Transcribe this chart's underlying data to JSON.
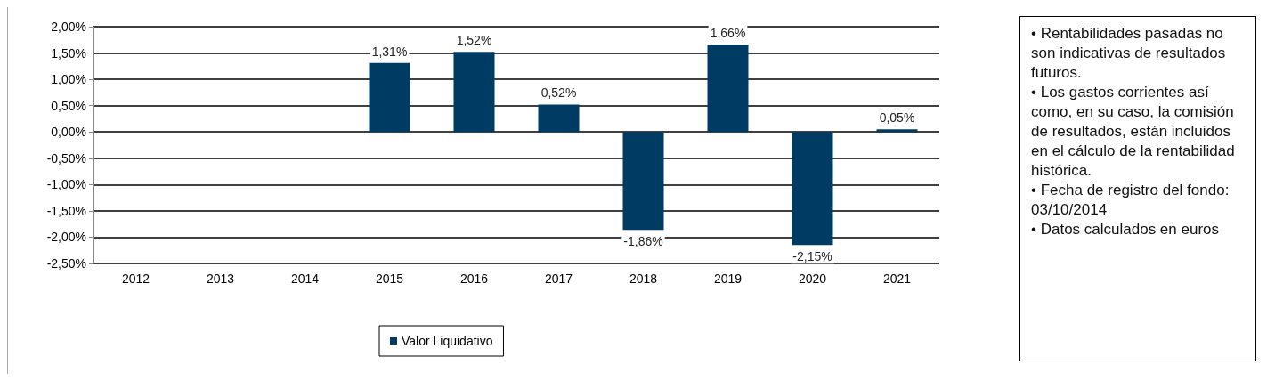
{
  "chart_data": {
    "type": "bar",
    "categories": [
      "2012",
      "2013",
      "2014",
      "2015",
      "2016",
      "2017",
      "2018",
      "2019",
      "2020",
      "2021"
    ],
    "series": [
      {
        "name": "Valor Liquidativo",
        "color": "#003b63",
        "values": [
          null,
          null,
          null,
          1.31,
          1.52,
          0.52,
          -1.86,
          1.66,
          -2.15,
          0.05
        ],
        "value_labels": [
          null,
          null,
          null,
          "1,31%",
          "1,52%",
          "0,52%",
          "-1,86%",
          "1,66%",
          "-2,15%",
          "0,05%"
        ]
      }
    ],
    "ylim": [
      -2.5,
      2
    ],
    "yticks": [
      {
        "value": -2.5,
        "label": "-2,50%"
      },
      {
        "value": -2,
        "label": "-2,00%"
      },
      {
        "value": -1.5,
        "label": "-1,50%"
      },
      {
        "value": -1,
        "label": "-1,00%"
      },
      {
        "value": -0.5,
        "label": "-0,50%"
      },
      {
        "value": 0,
        "label": "0,00%"
      },
      {
        "value": 0.5,
        "label": "0,50%"
      },
      {
        "value": 1,
        "label": "1,00%"
      },
      {
        "value": 1.5,
        "label": "1,50%"
      },
      {
        "value": 2,
        "label": "2,00%"
      }
    ],
    "grid": "y",
    "legend": "bottom",
    "annotations": [
      "• Rentabilidades pasadas no son indicativas de resultados futuros.",
      "• Los gastos corrientes así como, en su caso, la comisión de resultados, están incluidos en el cálculo de la rentabilidad histórica.",
      "• Fecha de registro del fondo: 03/10/2014",
      "• Datos calculados en euros"
    ]
  }
}
